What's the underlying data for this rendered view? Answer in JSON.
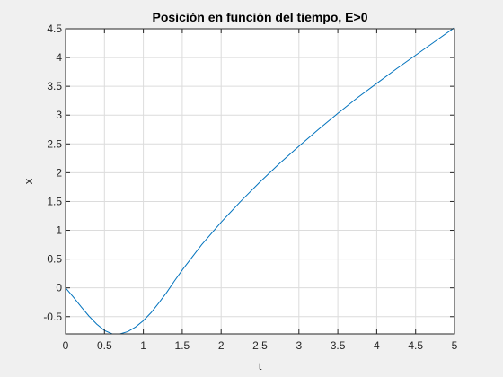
{
  "chart_data": {
    "type": "line",
    "title": "Posición en función del tiempo, E>0",
    "xlabel": "t",
    "ylabel": "x",
    "xlim": [
      0,
      5
    ],
    "ylim": [
      -0.8,
      4.5
    ],
    "xticks": [
      0,
      0.5,
      1,
      1.5,
      2,
      2.5,
      3,
      3.5,
      4,
      4.5,
      5
    ],
    "yticks": [
      -0.5,
      0,
      0.5,
      1,
      1.5,
      2,
      2.5,
      3,
      3.5,
      4,
      4.5
    ],
    "xtick_labels": [
      "0",
      "0.5",
      "1",
      "1.5",
      "2",
      "2.5",
      "3",
      "3.5",
      "4",
      "4.5",
      "5"
    ],
    "ytick_labels": [
      "-0.5",
      "0",
      "0.5",
      "1",
      "1.5",
      "2",
      "2.5",
      "3",
      "3.5",
      "4",
      "4.5"
    ],
    "grid": true,
    "series": [
      {
        "color": "#0072bd",
        "x": [
          0,
          0.1,
          0.2,
          0.3,
          0.4,
          0.5,
          0.6,
          0.7,
          0.8,
          0.9,
          1.0,
          1.1,
          1.2,
          1.3,
          1.4,
          1.5,
          1.75,
          2.0,
          2.25,
          2.5,
          2.75,
          3.0,
          3.25,
          3.5,
          3.75,
          4.0,
          4.25,
          4.5,
          4.75,
          5.0
        ],
        "y": [
          0,
          -0.16,
          -0.33,
          -0.49,
          -0.63,
          -0.74,
          -0.8,
          -0.8,
          -0.76,
          -0.68,
          -0.57,
          -0.43,
          -0.26,
          -0.08,
          0.12,
          0.31,
          0.75,
          1.14,
          1.5,
          1.84,
          2.16,
          2.46,
          2.75,
          3.03,
          3.3,
          3.55,
          3.8,
          4.04,
          4.28,
          4.52
        ]
      }
    ]
  }
}
